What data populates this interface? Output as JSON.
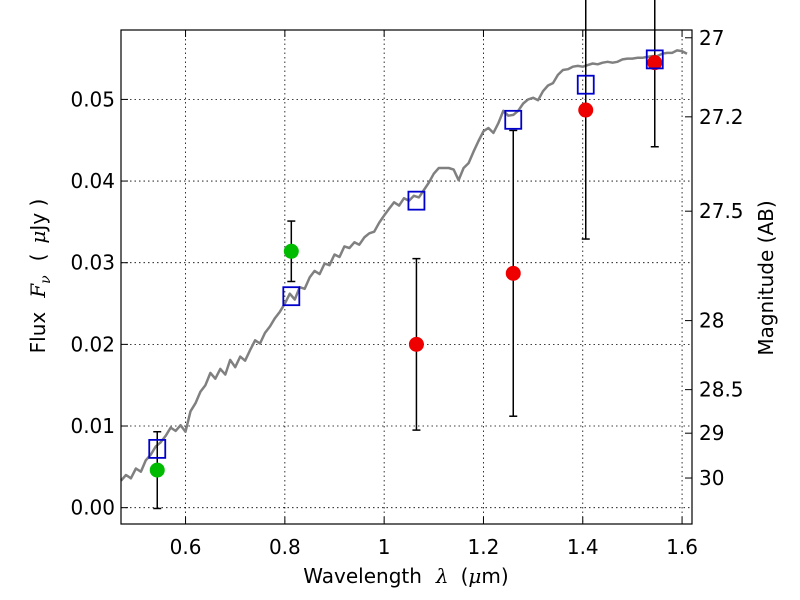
{
  "chart_data": {
    "type": "scatter",
    "xlabel_prefix": "Wavelength",
    "xlabel_symbol": "λ",
    "xlabel_unit_open": "(",
    "xlabel_unit_mu": "μ",
    "xlabel_unit_rest": "m)",
    "ylabel_prefix": "Flux",
    "ylabel_symbol": "F",
    "ylabel_sub": "ν",
    "ylabel_unit_open": "(",
    "ylabel_unit_mu": "μ",
    "ylabel_unit_rest": "Jy )",
    "y2label": "Magnitude (AB)",
    "xlim": [
      0.47,
      1.62
    ],
    "ylim": [
      -0.002,
      0.0585
    ],
    "grid": true,
    "x_ticks": [
      0.6,
      0.8,
      1.0,
      1.2,
      1.4,
      1.6
    ],
    "x_tick_labels": [
      "0.6",
      "0.8",
      "1",
      "1.2",
      "1.4",
      "1.6"
    ],
    "y_ticks": [
      0.0,
      0.01,
      0.02,
      0.03,
      0.04,
      0.05
    ],
    "y_tick_labels": [
      "0.00",
      "0.01",
      "0.02",
      "0.03",
      "0.04",
      "0.05"
    ],
    "y2_ticks": [
      {
        "mag": 27,
        "label": "27"
      },
      {
        "mag": 27.2,
        "label": "27.2"
      },
      {
        "mag": 27.5,
        "label": "27.5"
      },
      {
        "mag": 28,
        "label": "28"
      },
      {
        "mag": 28.5,
        "label": "28.5"
      },
      {
        "mag": 29,
        "label": "29"
      },
      {
        "mag": 30,
        "label": "30"
      }
    ],
    "colors": {
      "model": "#808080",
      "green": "#00bb00",
      "red": "#ee0000",
      "square": "#0000cc",
      "errorbar": "#000000"
    },
    "model_spectrum": {
      "x": [
        0.47,
        0.48,
        0.49,
        0.5,
        0.51,
        0.52,
        0.53,
        0.54,
        0.55,
        0.56,
        0.57,
        0.58,
        0.59,
        0.6,
        0.61,
        0.62,
        0.63,
        0.64,
        0.65,
        0.66,
        0.67,
        0.68,
        0.69,
        0.7,
        0.71,
        0.72,
        0.73,
        0.74,
        0.75,
        0.76,
        0.77,
        0.78,
        0.79,
        0.8,
        0.81,
        0.82,
        0.83,
        0.84,
        0.85,
        0.86,
        0.87,
        0.88,
        0.89,
        0.9,
        0.91,
        0.92,
        0.93,
        0.94,
        0.95,
        0.96,
        0.97,
        0.98,
        0.99,
        1.0,
        1.01,
        1.02,
        1.03,
        1.04,
        1.05,
        1.06,
        1.07,
        1.08,
        1.09,
        1.1,
        1.11,
        1.12,
        1.13,
        1.14,
        1.15,
        1.16,
        1.17,
        1.18,
        1.19,
        1.2,
        1.21,
        1.22,
        1.23,
        1.24,
        1.25,
        1.26,
        1.27,
        1.28,
        1.29,
        1.3,
        1.31,
        1.32,
        1.33,
        1.34,
        1.35,
        1.36,
        1.37,
        1.38,
        1.39,
        1.4,
        1.41,
        1.42,
        1.43,
        1.44,
        1.45,
        1.46,
        1.47,
        1.48,
        1.49,
        1.5,
        1.51,
        1.52,
        1.53,
        1.54,
        1.55,
        1.56,
        1.57,
        1.58,
        1.59,
        1.6,
        1.61
      ],
      "y": [
        0.0033,
        0.004,
        0.0036,
        0.0048,
        0.0044,
        0.0058,
        0.0065,
        0.0075,
        0.008,
        0.0088,
        0.0098,
        0.0094,
        0.0101,
        0.0093,
        0.0118,
        0.0128,
        0.0142,
        0.015,
        0.0165,
        0.0158,
        0.017,
        0.0163,
        0.0181,
        0.0172,
        0.0185,
        0.018,
        0.0193,
        0.0205,
        0.0201,
        0.0214,
        0.0222,
        0.0232,
        0.024,
        0.025,
        0.0262,
        0.0255,
        0.027,
        0.0268,
        0.0282,
        0.029,
        0.0286,
        0.0299,
        0.0297,
        0.031,
        0.0307,
        0.032,
        0.0318,
        0.0325,
        0.0322,
        0.0331,
        0.0336,
        0.0338,
        0.0349,
        0.0358,
        0.0366,
        0.0374,
        0.037,
        0.0379,
        0.0376,
        0.0382,
        0.038,
        0.0389,
        0.0398,
        0.0409,
        0.0416,
        0.0416,
        0.0416,
        0.0414,
        0.0401,
        0.0416,
        0.0422,
        0.0436,
        0.0449,
        0.0461,
        0.0465,
        0.0459,
        0.0471,
        0.0486,
        0.048,
        0.0481,
        0.0486,
        0.0495,
        0.05,
        0.0502,
        0.0499,
        0.051,
        0.0517,
        0.052,
        0.053,
        0.0536,
        0.0537,
        0.054,
        0.0541,
        0.054,
        0.0542,
        0.0544,
        0.0543,
        0.0545,
        0.0546,
        0.0545,
        0.0546,
        0.0549,
        0.055,
        0.055,
        0.0551,
        0.0551,
        0.0552,
        0.0553,
        0.0553,
        0.0556,
        0.0557,
        0.0557,
        0.056,
        0.0559,
        0.0556
      ]
    },
    "squares": {
      "x": [
        0.543,
        0.813,
        1.065,
        1.26,
        1.406,
        1.545
      ],
      "y": [
        0.0072,
        0.0259,
        0.0376,
        0.0475,
        0.0518,
        0.0549
      ]
    },
    "green_points": {
      "x": [
        0.543,
        0.813
      ],
      "y": [
        0.0046,
        0.0314
      ],
      "err": [
        0.0047,
        0.0037
      ]
    },
    "red_points": {
      "x": [
        1.065,
        1.26,
        1.406,
        1.545
      ],
      "y": [
        0.02,
        0.0287,
        0.0487,
        0.0545
      ],
      "err": [
        0.0105,
        0.0175,
        0.0158,
        0.0103
      ]
    }
  }
}
